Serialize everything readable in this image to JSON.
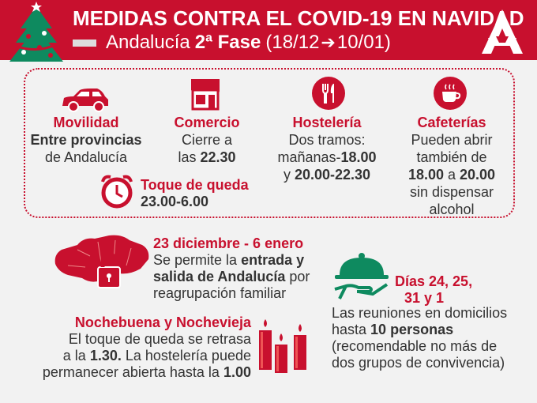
{
  "header": {
    "title": "MEDIDAS CONTRA EL COVID-19 EN NAVIDAD",
    "region": "Andalucía",
    "phase": "2ª Fase",
    "date_start": "(18/12",
    "date_end": "10/01)"
  },
  "movilidad": {
    "title": "Movilidad",
    "line1": "Entre provincias",
    "line2": "de Andalucía"
  },
  "comercio": {
    "title": "Comercio",
    "line1": "Cierre a",
    "line2_pre": "las ",
    "line2_bold": "22.30"
  },
  "hosteleria": {
    "title": "Hostelería",
    "line1": "Dos tramos:",
    "line2_pre": "mañanas-",
    "line2_bold": "18.00",
    "line3_pre": "y ",
    "line3_bold": "20.00-22.30"
  },
  "cafeterias": {
    "title": "Cafeterías",
    "line1": "Pueden abrir",
    "line2": "también de",
    "line3_a": "18.00",
    "line3_mid": " a ",
    "line3_b": "20.00",
    "line4": "sin dispensar",
    "line5": "alcohol"
  },
  "toque": {
    "title": "Toque de queda",
    "hours": "23.00-6.00"
  },
  "diciembre": {
    "title": "23 diciembre - 6 enero",
    "l1_pre": "Se permite la ",
    "l1_bold": "entrada y",
    "l2_bold": "salida de Andalucía",
    "l2_post": " por",
    "l3": "reagrupación familiar"
  },
  "dias": {
    "title_l1": "Días 24, 25,",
    "title_l2": "31 y 1",
    "l1": "Las reuniones en domicilios",
    "l2_pre": "hasta ",
    "l2_bold": "10 personas",
    "l3": "(recomendable no más de",
    "l4": "dos grupos de convivencia)"
  },
  "nochebuena": {
    "title": "Nochebuena y Nochevieja",
    "l1": "El toque de queda se retrasa",
    "l2_pre": "a la ",
    "l2_bold": "1.30.",
    "l2_post": " La hostelería puede",
    "l3_pre": "permanecer abierta hasta la ",
    "l3_bold": "1.00"
  },
  "colors": {
    "accent": "#c8102e",
    "green": "#0e8a5f",
    "background": "#f2f2f2"
  },
  "icons": [
    "christmas-tree-icon",
    "junta-andalucia-logo",
    "car-icon",
    "shop-icon",
    "cutlery-icon",
    "coffee-cup-icon",
    "alarm-clock-icon",
    "andalucia-map-lock-icon",
    "serving-tray-icon",
    "candles-icon"
  ]
}
